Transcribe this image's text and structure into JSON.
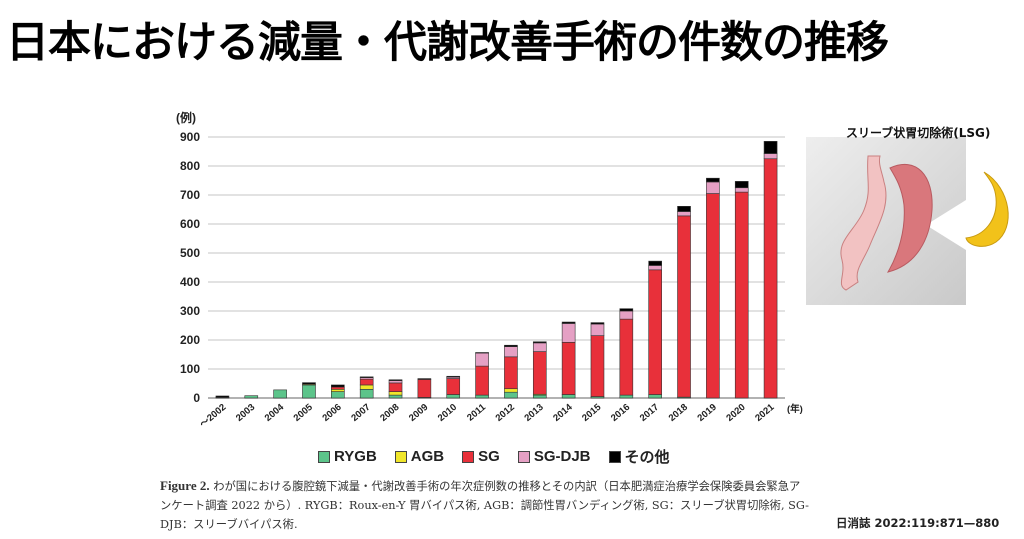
{
  "page_title": "日本における減量・代謝改善手術の件数の推移",
  "illustration": {
    "label": "スリーブ状胃切除術(LSG)",
    "stomach_color": "#e8a0a0",
    "banana_color": "#f2c21a"
  },
  "caption": {
    "figure_label": "Figure 2.",
    "text": "わが国における腹腔鏡下減量・代謝改善手術の年次症例数の推移とその内訳（日本肥満症治療学会保険委員会緊急アンケート調査 2022 から）. RYGB：Roux-en-Y 胃バイパス術, AGB：調節性胃バンディング術, SG：スリーブ状胃切除術, SG-DJB：スリーブバイパス術."
  },
  "source": "日消誌 2022:119:871—880",
  "chart_data": {
    "type": "bar",
    "stacked": true,
    "title": "",
    "ylabel": "(例)",
    "xlabel": "(年)",
    "ylim": [
      0,
      900
    ],
    "yticks": [
      0,
      100,
      200,
      300,
      400,
      500,
      600,
      700,
      800,
      900
    ],
    "grid": true,
    "legend_position": "bottom",
    "categories": [
      "～2002",
      "2003",
      "2004",
      "2005",
      "2006",
      "2007",
      "2008",
      "2009",
      "2010",
      "2011",
      "2012",
      "2013",
      "2014",
      "2015",
      "2016",
      "2017",
      "2018",
      "2019",
      "2020",
      "2021"
    ],
    "series": [
      {
        "name": "RYGB",
        "color": "#5cc48a",
        "values": [
          2,
          8,
          28,
          45,
          22,
          30,
          10,
          2,
          12,
          10,
          20,
          10,
          12,
          5,
          10,
          12,
          3,
          0,
          0,
          0
        ]
      },
      {
        "name": "AGB",
        "color": "#f0e62a",
        "values": [
          0,
          0,
          0,
          3,
          8,
          15,
          12,
          0,
          0,
          0,
          12,
          3,
          0,
          0,
          0,
          0,
          0,
          0,
          0,
          0
        ]
      },
      {
        "name": "SG",
        "color": "#e8303a",
        "values": [
          0,
          0,
          0,
          0,
          8,
          20,
          30,
          62,
          55,
          100,
          110,
          147,
          180,
          210,
          262,
          430,
          625,
          705,
          710,
          825
        ]
      },
      {
        "name": "SG-DJB",
        "color": "#e5a0c4",
        "values": [
          0,
          0,
          0,
          0,
          0,
          5,
          8,
          0,
          5,
          45,
          35,
          30,
          65,
          40,
          28,
          15,
          15,
          40,
          15,
          18
        ]
      },
      {
        "name": "その他",
        "color": "#000000",
        "values": [
          5,
          0,
          0,
          5,
          7,
          3,
          3,
          3,
          3,
          2,
          5,
          4,
          5,
          5,
          8,
          15,
          18,
          13,
          22,
          42
        ]
      }
    ]
  }
}
